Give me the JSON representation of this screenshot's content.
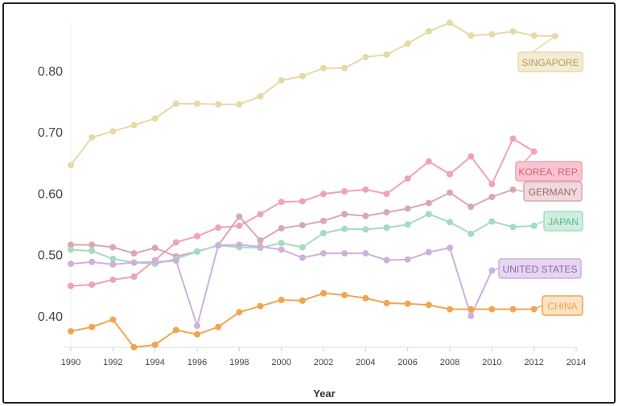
{
  "chart_data": {
    "type": "line",
    "title": "",
    "xlabel": "Year",
    "ylabel": "",
    "xlim": [
      1990,
      2014
    ],
    "ylim": [
      0.35,
      0.89
    ],
    "x_ticks": [
      "1990",
      "1992",
      "1994",
      "1996",
      "1998",
      "2000",
      "2002",
      "2004",
      "2006",
      "2008",
      "2010",
      "2012",
      "2014"
    ],
    "y_ticks": [
      "0.40",
      "0.50",
      "0.60",
      "0.70",
      "0.80"
    ],
    "grid": false,
    "legend": "inline labels at right end of each line",
    "x": [
      1990,
      1991,
      1992,
      1993,
      1994,
      1995,
      1996,
      1997,
      1998,
      1999,
      2000,
      2001,
      2002,
      2003,
      2004,
      2005,
      2006,
      2007,
      2008,
      2009,
      2010,
      2011,
      2012,
      2013
    ],
    "series": [
      {
        "name": "SINGAPORE",
        "color": "#e6d9a8",
        "label_bg": "#f3ecd2",
        "label_text": "#b49c5c",
        "values": [
          0.646,
          0.691,
          0.701,
          0.711,
          0.722,
          0.746,
          0.746,
          0.745,
          0.745,
          0.758,
          0.784,
          0.791,
          0.804,
          0.804,
          0.822,
          0.826,
          0.844,
          0.864,
          0.878,
          0.857,
          0.859,
          0.864,
          0.857,
          0.856
        ]
      },
      {
        "name": "KOREA, REP.",
        "color": "#f0a3b4",
        "label_bg": "#f9c6d0",
        "label_text": "#d0607a",
        "values": [
          0.449,
          0.451,
          0.459,
          0.464,
          0.491,
          0.52,
          0.53,
          0.544,
          0.547,
          0.566,
          0.586,
          0.587,
          0.599,
          0.603,
          0.606,
          0.599,
          0.624,
          0.652,
          0.631,
          0.66,
          0.615,
          0.689,
          0.668,
          null
        ]
      },
      {
        "name": "GERMANY",
        "color": "#d8a8b0",
        "label_bg": "#f0d8dc",
        "label_text": "#9a6a72",
        "values": [
          0.516,
          0.516,
          0.512,
          0.502,
          0.511,
          0.497,
          0.505,
          0.515,
          0.562,
          0.523,
          0.543,
          0.548,
          0.555,
          0.566,
          0.563,
          0.569,
          0.575,
          0.584,
          0.601,
          0.578,
          0.594,
          0.606,
          null,
          null
        ]
      },
      {
        "name": "JAPAN",
        "color": "#a3dcc0",
        "label_bg": "#cdeedd",
        "label_text": "#5fb68c",
        "values": [
          0.508,
          0.506,
          0.493,
          0.487,
          0.485,
          0.493,
          0.505,
          0.515,
          0.512,
          0.511,
          0.519,
          0.512,
          0.535,
          0.542,
          0.541,
          0.544,
          0.549,
          0.566,
          0.553,
          0.534,
          0.554,
          0.545,
          0.547,
          null
        ]
      },
      {
        "name": "UNITED STATES",
        "color": "#cdb0dc",
        "label_bg": "#e6d6ef",
        "label_text": "#8d6aa6",
        "values": [
          0.485,
          0.488,
          0.484,
          0.487,
          0.488,
          0.49,
          0.384,
          0.515,
          0.516,
          0.513,
          0.508,
          0.495,
          0.502,
          0.502,
          0.502,
          0.491,
          0.492,
          0.504,
          0.511,
          0.4,
          0.474,
          null,
          null,
          null
        ]
      },
      {
        "name": "CHINA",
        "color": "#f0a550",
        "label_bg": "#fde3c4",
        "label_text": "#f0a550",
        "values": [
          0.375,
          0.382,
          0.394,
          0.349,
          0.353,
          0.377,
          0.37,
          0.382,
          0.406,
          0.416,
          0.426,
          0.425,
          0.437,
          0.434,
          0.429,
          0.421,
          0.42,
          0.418,
          0.411,
          0.411,
          0.411,
          0.411,
          0.411,
          null
        ]
      }
    ]
  }
}
